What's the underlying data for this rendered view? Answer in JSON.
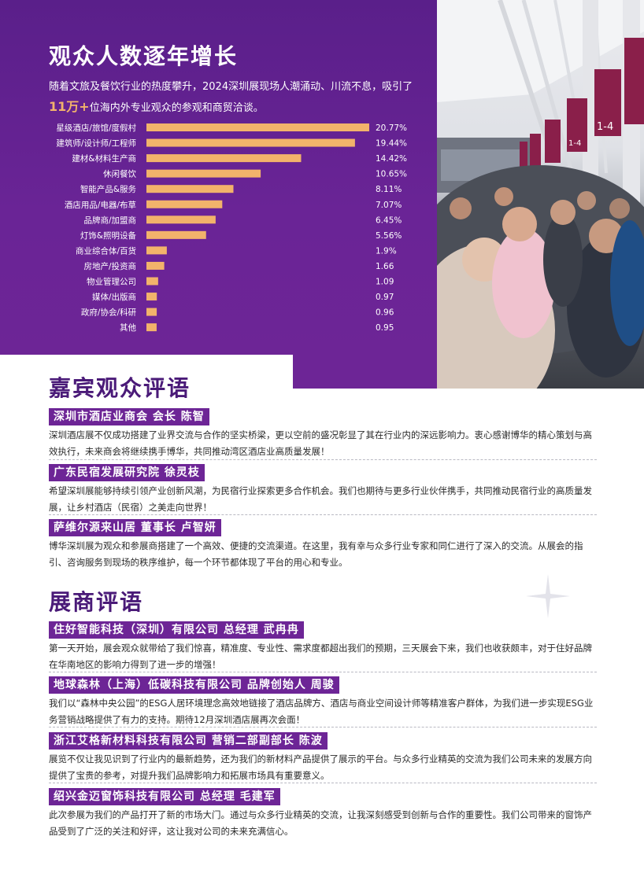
{
  "audience": {
    "title": "观众人数逐年增长",
    "intro_before": "随着文旅及餐饮行业的热度攀升，2024深圳展现场人潮涌动、川流不息，吸引了",
    "intro_highlight": "11万+",
    "intro_after": "位海内外专业观众的参观和商贸洽谈。"
  },
  "chart_data": {
    "type": "bar",
    "orientation": "horizontal",
    "categories": [
      "星级酒店/旅馆/度假村",
      "建筑师/设计师/工程师",
      "建材&材料生产商",
      "休闲餐饮",
      "智能产品&服务",
      "酒店用品/电器/布草",
      "品牌商/加盟商",
      "灯饰&照明设备",
      "商业综合体/百货",
      "房地产/投资商",
      "物业管理公司",
      "媒体/出版商",
      "政府/协会/科研",
      "其他"
    ],
    "values": [
      20.77,
      19.44,
      14.42,
      10.65,
      8.11,
      7.07,
      6.45,
      5.56,
      1.9,
      1.66,
      1.09,
      0.97,
      0.96,
      0.95
    ],
    "value_labels": [
      "20.77%",
      "19.44%",
      "14.42%",
      "10.65%",
      "8.11%",
      "7.07%",
      "6.45%",
      "5.56%",
      "1.9%",
      "1.66",
      "1.09",
      "0.97",
      "0.96",
      "0.95"
    ],
    "colors": {
      "bar": "#f2b36b"
    }
  },
  "guests": {
    "title": "嘉宾观众评语",
    "items": [
      {
        "name": "深圳市酒店业商会 会长 陈智",
        "text": "深圳酒店展不仅成功搭建了业界交流与合作的坚实桥梁，更以空前的盛况彰显了其在行业内的深远影响力。衷心感谢博华的精心策划与高效执行，未来商会将继续携手博华，共同推动湾区酒店业高质量发展！"
      },
      {
        "name": "广东民宿发展研究院  徐灵枝",
        "text": "希望深圳展能够持续引领产业创新风潮，为民宿行业探索更多合作机会。我们也期待与更多行业伙伴携手，共同推动民宿行业的高质量发展，让乡村酒店（民宿）之美走向世界！"
      },
      {
        "name": "萨维尔源来山居 董事长 卢智妍",
        "text": "博华深圳展为观众和参展商搭建了一个高效、便捷的交流渠道。在这里，我有幸与众多行业专家和同仁进行了深入的交流。从展会的指引、咨询服务到现场的秩序维护，每一个环节都体现了平台的用心和专业。"
      }
    ]
  },
  "exhibitors": {
    "title": "展商评语",
    "items": [
      {
        "name": "住好智能科技（深圳）有限公司 总经理 武冉冉",
        "text": "第一天开始，展会观众就带给了我们惊喜，精准度、专业性、需求度都超出我们的预期，三天展会下来，我们也收获颇丰，对于住好品牌在华南地区的影响力得到了进一步的增强！"
      },
      {
        "name": "地球森林（上海）低碳科技有限公司 品牌创始人  周骏",
        "text": "我们以“森林中央公园”的ESG人居环境理念高效地链接了酒店品牌方、酒店与商业空间设计师等精准客户群体，为我们进一步实现ESG业务营销战略提供了有力的支持。期待12月深圳酒店展再次会面！"
      },
      {
        "name": "浙江艾格新材料科技有限公司  营销二部副部长 陈波",
        "text": "展览不仅让我见识到了行业内的最新趋势，还为我们的新材料产品提供了展示的平台。与众多行业精英的交流为我们公司未来的发展方向提供了宝贵的参考，对提升我们品牌影响力和拓展市场具有重要意义。"
      },
      {
        "name": "绍兴金迈窗饰科技有限公司 总经理 毛建军",
        "text": "此次参展为我们的产品打开了新的市场大门。通过与众多行业精英的交流，让我深刻感受到创新与合作的重要性。我们公司带来的窗饰产品受到了广泛的关注和好评，这让我对公司的未来充满信心。"
      }
    ]
  },
  "photo": {
    "signs": [
      "1-4",
      "1-4",
      "1-4",
      "1-4",
      "1-4"
    ]
  }
}
